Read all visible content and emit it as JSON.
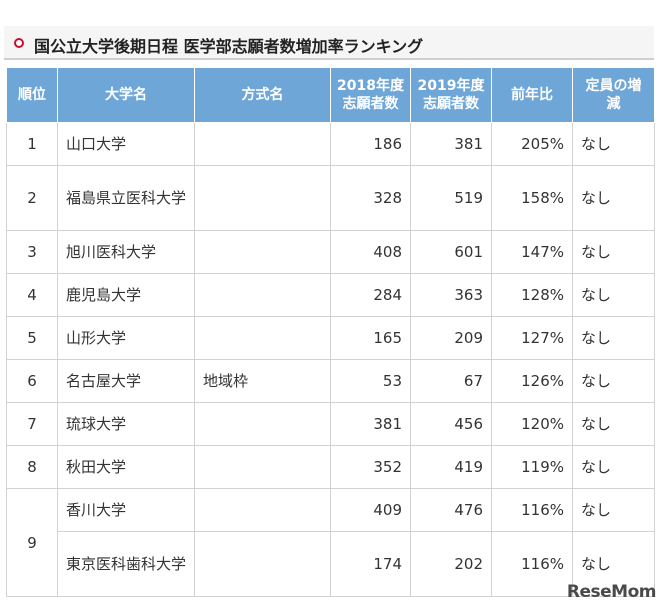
{
  "title": "国公立大学後期日程 医学部志願者数増加率ランキング",
  "headers": {
    "rank": "順位",
    "university": "大学名",
    "method": "方式名",
    "y2018_line1": "2018年度",
    "y2018_line2": "志願者数",
    "y2019_line1": "2019年度",
    "y2019_line2": "志願者数",
    "ratio": "前年比",
    "quota_line1": "定員の増",
    "quota_line2": "減"
  },
  "rows": [
    {
      "rank": "1",
      "university": "山口大学",
      "method": "",
      "y2018": "186",
      "y2019": "381",
      "ratio": "205%",
      "quota": "なし"
    },
    {
      "rank": "2",
      "university": "福島県立医科大学",
      "method": "",
      "y2018": "328",
      "y2019": "519",
      "ratio": "158%",
      "quota": "なし"
    },
    {
      "rank": "3",
      "university": "旭川医科大学",
      "method": "",
      "y2018": "408",
      "y2019": "601",
      "ratio": "147%",
      "quota": "なし"
    },
    {
      "rank": "4",
      "university": "鹿児島大学",
      "method": "",
      "y2018": "284",
      "y2019": "363",
      "ratio": "128%",
      "quota": "なし"
    },
    {
      "rank": "5",
      "university": "山形大学",
      "method": "",
      "y2018": "165",
      "y2019": "209",
      "ratio": "127%",
      "quota": "なし"
    },
    {
      "rank": "6",
      "university": "名古屋大学",
      "method": "地域枠",
      "y2018": "53",
      "y2019": "67",
      "ratio": "126%",
      "quota": "なし"
    },
    {
      "rank": "7",
      "university": "琉球大学",
      "method": "",
      "y2018": "381",
      "y2019": "456",
      "ratio": "120%",
      "quota": "なし"
    },
    {
      "rank": "8",
      "university": "秋田大学",
      "method": "",
      "y2018": "352",
      "y2019": "419",
      "ratio": "119%",
      "quota": "なし"
    },
    {
      "rank": "9",
      "university": "香川大学",
      "method": "",
      "y2018": "409",
      "y2019": "476",
      "ratio": "116%",
      "quota": "なし"
    },
    {
      "rank": "",
      "university": "東京医科歯科大学",
      "method": "",
      "y2018": "174",
      "y2019": "202",
      "ratio": "116%",
      "quota": "なし"
    }
  ],
  "logo": "ReseMom"
}
